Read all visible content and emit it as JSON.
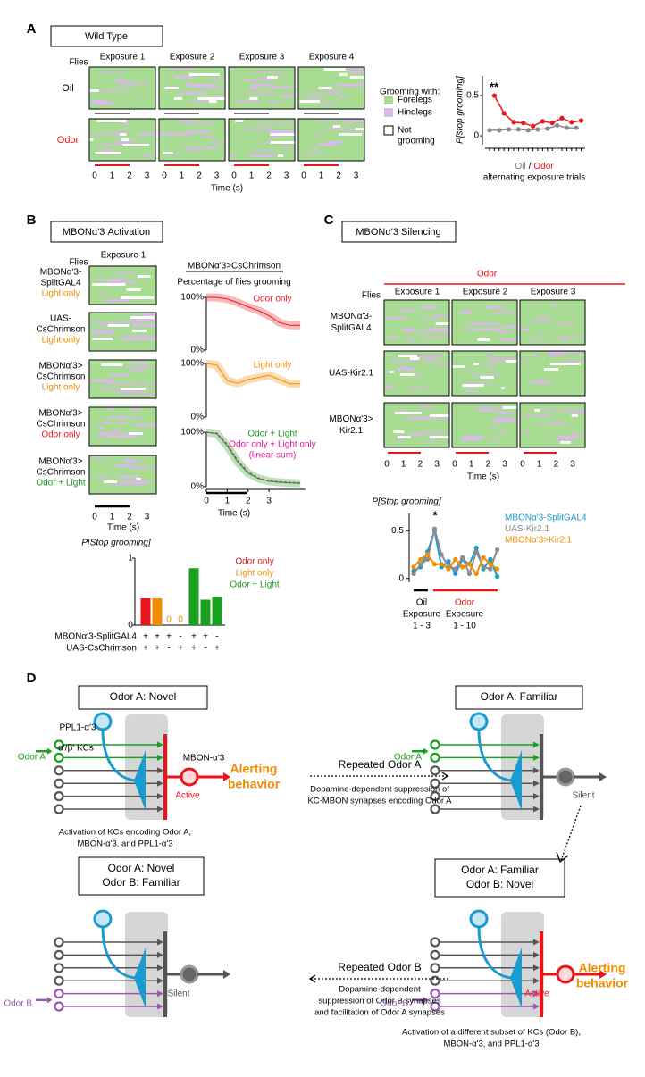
{
  "panel_a": {
    "letter": "A",
    "title": "Wild Type",
    "flies_label": "Flies",
    "exposures": [
      "Exposure 1",
      "Exposure 2",
      "Exposure 3",
      "Exposure 4"
    ],
    "rows": [
      {
        "label": "Oil",
        "color": "#000000",
        "bar_color": "#777777"
      },
      {
        "label": "Odor",
        "color": "#e8161b",
        "bar_color": "#e8161b"
      }
    ],
    "time_ticks": [
      0,
      1,
      2,
      3
    ],
    "time_label": "Time (s)",
    "legend": {
      "title": "Grooming with:",
      "items": [
        {
          "lines": [
            "Forelegs"
          ],
          "color": "#a8dc92"
        },
        {
          "lines": [
            "Hindlegs"
          ],
          "color": "#d8bce6"
        },
        {
          "lines": [
            "Not",
            "grooming"
          ],
          "color": "#ffffff"
        }
      ]
    },
    "chart": {
      "y_label": "P[stop grooming]",
      "annotation": "**",
      "ylim": [
        -0.11,
        0.745
      ],
      "yticks": [
        0,
        0.5
      ],
      "x_label": {
        "oil": "Oil",
        "sep": "/",
        "odor": "Odor"
      },
      "x_sublabel": "alternating exposure trials",
      "series": [
        {
          "color": "#8c8c8c",
          "values": [
            0.07,
            0.07,
            0.08,
            0.08,
            0.07,
            0.08,
            0.09,
            0.13,
            0.1,
            0.1
          ]
        },
        {
          "color": "#e8161b",
          "values": [
            0.5,
            0.28,
            0.17,
            0.16,
            0.12,
            0.18,
            0.16,
            0.22,
            0.17,
            0.19
          ]
        }
      ]
    }
  },
  "panel_b": {
    "letter": "B",
    "title": "MBONα'3 Activation",
    "exposure": "Exposure 1",
    "flies_label": "Flies",
    "rows": [
      {
        "lines": [
          "MBONα'3-",
          "SplitGAL4"
        ],
        "condition": "Light only",
        "condition_color": "#f28c00"
      },
      {
        "lines": [
          "UAS-",
          "CsChrimson"
        ],
        "condition": "Light only",
        "condition_color": "#f28c00"
      },
      {
        "lines": [
          "MBONα'3>",
          "CsChrimson"
        ],
        "condition": "Light only",
        "condition_color": "#f28c00"
      },
      {
        "lines": [
          "MBONα'3>",
          "CsChrimson"
        ],
        "condition": "Odor only",
        "condition_color": "#e8161b"
      },
      {
        "lines": [
          "MBONα'3>",
          "CsChrimson"
        ],
        "condition": "Odor + Light",
        "condition_color": "#19a01e"
      }
    ],
    "time_ticks": [
      0,
      1,
      2,
      3
    ],
    "time_label": "Time (s)",
    "traces": {
      "header": "MBONα'3>CsChrimson",
      "subheader": "Percentage of flies grooming",
      "ylim": [
        0,
        100
      ],
      "yticks": [
        {
          "value": 0,
          "label": "0%"
        },
        {
          "value": 100,
          "label": "100%"
        }
      ],
      "xlim": [
        0,
        4.75
      ],
      "xticks": [
        0,
        1,
        2,
        3
      ],
      "x_label": "Time (s)",
      "x": [
        0,
        0.5,
        1,
        1.5,
        2,
        2.5,
        3,
        3.5,
        4,
        4.5
      ],
      "plots": [
        {
          "labels": [
            {
              "text": "Odor only",
              "color": "#e8161b"
            }
          ],
          "series": [
            {
              "color": "#e8161b",
              "values": [
                100,
                100,
                97,
                90,
                82,
                75,
                65,
                52,
                47,
                47
              ]
            }
          ]
        },
        {
          "labels": [
            {
              "text": "Light only",
              "color": "#f28c00"
            }
          ],
          "series": [
            {
              "color": "#f28c00",
              "values": [
                100,
                97,
                68,
                63,
                70,
                74,
                78,
                70,
                62,
                62
              ]
            }
          ]
        },
        {
          "labels": [
            {
              "text": "Odor + Light",
              "color": "#19a01e"
            },
            {
              "text": "Odor only + Light only",
              "color": "#e0179b"
            },
            {
              "text": "(linear sum)",
              "color": "#e0179b"
            }
          ],
          "series": [
            {
              "color": "#19a01e",
              "values": [
                100,
                97,
                75,
                45,
                25,
                15,
                10,
                8,
                7,
                6
              ]
            },
            {
              "color": "#e0179b",
              "values": [
                100,
                98,
                78,
                48,
                27,
                16,
                11,
                9,
                8,
                7
              ]
            }
          ]
        }
      ]
    },
    "bars": {
      "title": "P[Stop grooming]",
      "ylim": [
        0,
        1
      ],
      "yticks": [
        0,
        1
      ],
      "values": [
        0.4,
        0.4,
        0,
        0,
        0.85,
        0.38,
        0.42
      ],
      "colors": [
        "#e8161b",
        "#f28c00",
        "#f28c00",
        "#f28c00",
        "#19a01e",
        "#19a01e",
        "#19a01e"
      ],
      "legend": [
        {
          "text": "Odor only",
          "color": "#e8161b"
        },
        {
          "text": "Light only",
          "color": "#f28c00"
        },
        {
          "text": "Odor + Light",
          "color": "#19a01e"
        }
      ],
      "genotypes": [
        {
          "label": "MBONα'3-SplitGAL4",
          "signs": [
            "+",
            "+",
            "+",
            "-",
            "+",
            "+",
            "-"
          ]
        },
        {
          "label": "UAS-CsChrimson",
          "signs": [
            "+",
            "+",
            "-",
            "+",
            "+",
            "-",
            "+"
          ]
        }
      ]
    }
  },
  "panel_c": {
    "letter": "C",
    "title": "MBONα'3 Silencing",
    "odor_header": "Odor",
    "flies_label": "Flies",
    "exposures": [
      "Exposure 1",
      "Exposure 2",
      "Exposure 3"
    ],
    "rows": [
      {
        "lines": [
          "MBONα'3-",
          "SplitGAL4"
        ]
      },
      {
        "lines": [
          "UAS-Kir2.1"
        ]
      },
      {
        "lines": [
          "MBONα'3>",
          "Kir2.1"
        ]
      }
    ],
    "time_ticks": [
      0,
      1,
      2,
      3
    ],
    "time_label": "Time (s)",
    "chart": {
      "y_label": "P[Stop grooming]",
      "annotation": "*",
      "ylim": [
        -0.04,
        0.68
      ],
      "yticks": [
        0,
        0.5
      ],
      "series": [
        {
          "name": "MBONα'3-SplitGAL4",
          "color": "#1a9bd0",
          "values": [
            0.08,
            0.12,
            0.28,
            0.5,
            0.12,
            0.18,
            0.05,
            0.2,
            0.15,
            0.32,
            0.1,
            0.2,
            0.02
          ]
        },
        {
          "name": "UAS-Kir2.1",
          "color": "#8c8c8c",
          "values": [
            0.05,
            0.15,
            0.2,
            0.52,
            0.25,
            0.12,
            0.1,
            0.22,
            0.05,
            0.28,
            0.12,
            0.1,
            0.3
          ]
        },
        {
          "name": "MBONα'3>Kir2.1",
          "color": "#f28c00",
          "values": [
            0.12,
            0.2,
            0.25,
            0.15,
            0.15,
            0.1,
            0.2,
            0.12,
            0.15,
            0.05,
            0.22,
            0.15,
            0.1
          ]
        }
      ],
      "groups": [
        {
          "lines": [
            "Oil",
            "Exposure",
            "1 - 3"
          ],
          "color": "#000000"
        },
        {
          "lines": [
            "Odor",
            "Exposure",
            "1 - 10"
          ],
          "color": "#e8161b"
        }
      ]
    }
  },
  "panel_d": {
    "letter": "D",
    "states": [
      {
        "lines": [
          "Odor A: Novel"
        ]
      },
      {
        "lines": [
          "Odor A: Familiar"
        ]
      },
      {
        "lines": [
          "Odor A: Novel",
          "Odor B: Familiar"
        ]
      },
      {
        "lines": [
          "Odor A: Familiar",
          "Odor B: Novel"
        ]
      }
    ],
    "labels": {
      "ppl1": "PPL1-α'3",
      "kcs": "α'/β' KCs",
      "mbon": "MBON-α'3",
      "odor_a": "Odor A",
      "odor_b": "Odor B",
      "active": "Active",
      "silent": "Silent",
      "alerting": [
        "Alerting",
        "behavior"
      ]
    },
    "transitions": [
      {
        "title": "Repeated Odor A",
        "lines": [
          "Dopamine-dependent suppression of",
          "KC-MBON synapses encoding Odor A"
        ]
      },
      {
        "title": "Repeated Odor B",
        "lines": [
          "Dopamine-dependent",
          "suppression of Odor B synapses",
          "and facilitation of Odor A synapses"
        ]
      }
    ],
    "captions": [
      [
        "Activation of KCs encoding Odor A,",
        "MBON-α'3, and PPL1-α'3"
      ],
      [
        "Activation of a different subset of KCs (Odor B),",
        "MBON-α'3, and PPL1-α'3"
      ]
    ]
  }
}
